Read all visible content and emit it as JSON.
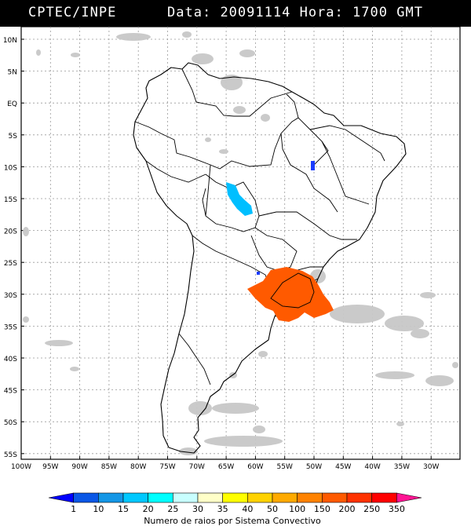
{
  "header": {
    "source": "CPTEC/INPE",
    "data_label": "Data:",
    "data_value": "20091114",
    "hora_label": "Hora:",
    "hora_value": "1700",
    "tz": "GMT"
  },
  "map": {
    "lat_labels": [
      "10N",
      "5N",
      "EQ",
      "5S",
      "10S",
      "15S",
      "20S",
      "25S",
      "30S",
      "35S",
      "40S",
      "45S",
      "50S",
      "55S"
    ],
    "lon_labels": [
      "100W",
      "95W",
      "90W",
      "85W",
      "80W",
      "75W",
      "70W",
      "65W",
      "60W",
      "55W",
      "50W",
      "45W",
      "40W",
      "35W",
      "30W"
    ]
  },
  "legend": {
    "values": [
      "1",
      "10",
      "15",
      "20",
      "25",
      "30",
      "35",
      "40",
      "50",
      "100",
      "150",
      "200",
      "250",
      "350"
    ],
    "colors": [
      "#0000ff",
      "#0a57e6",
      "#1496e6",
      "#00c8ff",
      "#00ffff",
      "#c8ffff",
      "#ffffc8",
      "#ffff00",
      "#ffd200",
      "#ffaa00",
      "#ff8200",
      "#ff5a00",
      "#ff3200",
      "#ff0000",
      "#ff1493"
    ],
    "caption": "Numero de raios por Sistema Convectivo"
  }
}
